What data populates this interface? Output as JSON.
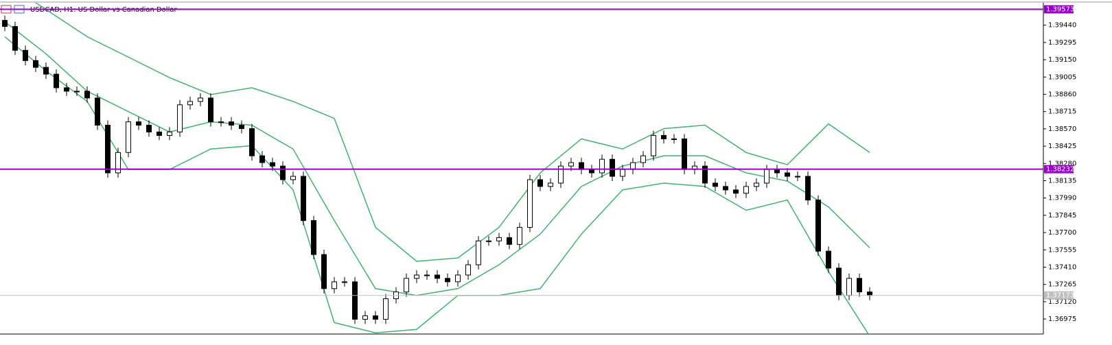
{
  "chart_data": {
    "type": "candlestick",
    "title": "USDCAD, H1:  US Dollar vs Canadian Dollar",
    "open": [
      1.3948,
      1.39429,
      1.39229,
      1.39143,
      1.39086,
      1.39029,
      1.38915,
      1.38886,
      1.38886,
      1.38829,
      1.38601,
      1.38201,
      1.38372,
      1.38629,
      1.38601,
      1.38544,
      1.38515,
      1.38544,
      1.38772,
      1.388,
      1.38829,
      1.38629,
      1.38629,
      1.38601,
      1.38572,
      1.38344,
      1.38287,
      1.38258,
      1.38144,
      1.38172,
      1.37801,
      1.37516,
      1.3723,
      1.37287,
      1.37287,
      1.36973,
      1.37002,
      1.36973,
      1.37145,
      1.37202,
      1.37316,
      1.37344,
      1.37344,
      1.37316,
      1.37287,
      1.37344,
      1.3743,
      1.3763,
      1.3763,
      1.37658,
      1.37601,
      1.37744,
      1.38144,
      1.38087,
      1.38115,
      1.38258,
      1.38287,
      1.38229,
      1.38201,
      1.38315,
      1.38172,
      1.38229,
      1.38287,
      1.38344,
      1.38515,
      1.38486,
      1.38486,
      1.38229,
      1.38258,
      1.38115,
      1.38087,
      1.38058,
      1.3803,
      1.38087,
      1.38115,
      1.38229,
      1.38201,
      1.38172,
      1.38172,
      1.37973,
      1.37544,
      1.37402,
      1.37173,
      1.37316,
      1.37202
    ],
    "high": [
      1.3952,
      1.39469,
      1.39269,
      1.39183,
      1.39126,
      1.39069,
      1.38955,
      1.38926,
      1.38926,
      1.38869,
      1.38641,
      1.38412,
      1.38669,
      1.38669,
      1.38641,
      1.38584,
      1.38584,
      1.38812,
      1.3884,
      1.38869,
      1.38869,
      1.38669,
      1.38669,
      1.38641,
      1.38612,
      1.38384,
      1.38327,
      1.38298,
      1.38212,
      1.38212,
      1.37841,
      1.37556,
      1.37327,
      1.37327,
      1.37327,
      1.37042,
      1.37042,
      1.37185,
      1.37242,
      1.37356,
      1.37384,
      1.37384,
      1.37384,
      1.37356,
      1.37384,
      1.3747,
      1.3767,
      1.3767,
      1.37698,
      1.37698,
      1.37784,
      1.38184,
      1.38184,
      1.38155,
      1.38298,
      1.38327,
      1.38327,
      1.38269,
      1.38355,
      1.38355,
      1.38269,
      1.38327,
      1.38384,
      1.38555,
      1.38555,
      1.38526,
      1.38526,
      1.38298,
      1.38298,
      1.38155,
      1.38127,
      1.38098,
      1.38127,
      1.38155,
      1.38269,
      1.38269,
      1.38241,
      1.38212,
      1.38212,
      1.38013,
      1.37584,
      1.37442,
      1.37356,
      1.37356,
      1.37242
    ],
    "low": [
      1.39389,
      1.39189,
      1.39103,
      1.39046,
      1.38989,
      1.38875,
      1.38846,
      1.38846,
      1.38789,
      1.38561,
      1.38161,
      1.38161,
      1.38332,
      1.38561,
      1.38504,
      1.38475,
      1.38475,
      1.38504,
      1.38732,
      1.3876,
      1.38589,
      1.38589,
      1.38561,
      1.38532,
      1.38304,
      1.38247,
      1.38218,
      1.38104,
      1.38104,
      1.37761,
      1.37476,
      1.3719,
      1.3719,
      1.37247,
      1.36933,
      1.36933,
      1.36933,
      1.36933,
      1.37105,
      1.37162,
      1.37276,
      1.37304,
      1.37276,
      1.37247,
      1.37247,
      1.37304,
      1.3739,
      1.3759,
      1.3759,
      1.37561,
      1.37561,
      1.37704,
      1.38047,
      1.38047,
      1.38075,
      1.38218,
      1.38189,
      1.38161,
      1.38161,
      1.38132,
      1.38132,
      1.38189,
      1.38247,
      1.38304,
      1.38446,
      1.38446,
      1.38189,
      1.38189,
      1.38075,
      1.38047,
      1.38018,
      1.3799,
      1.3799,
      1.38047,
      1.38075,
      1.38161,
      1.38132,
      1.38132,
      1.37933,
      1.37504,
      1.37362,
      1.37133,
      1.37133,
      1.37162,
      1.37133
    ],
    "close": [
      1.39429,
      1.39229,
      1.39143,
      1.39086,
      1.39029,
      1.38915,
      1.38886,
      1.38886,
      1.38829,
      1.38601,
      1.38201,
      1.38372,
      1.38629,
      1.38601,
      1.38544,
      1.38515,
      1.38544,
      1.38772,
      1.388,
      1.38829,
      1.38629,
      1.38629,
      1.38601,
      1.38572,
      1.38344,
      1.38287,
      1.38258,
      1.38144,
      1.38172,
      1.37801,
      1.37516,
      1.3723,
      1.37287,
      1.37287,
      1.36973,
      1.37002,
      1.36973,
      1.37145,
      1.37202,
      1.37316,
      1.37344,
      1.37344,
      1.37316,
      1.37287,
      1.37344,
      1.3743,
      1.3763,
      1.3763,
      1.37658,
      1.37601,
      1.37744,
      1.38144,
      1.38087,
      1.38115,
      1.38258,
      1.38287,
      1.38229,
      1.38201,
      1.38315,
      1.38172,
      1.38229,
      1.38287,
      1.38344,
      1.38515,
      1.38486,
      1.38486,
      1.38229,
      1.38258,
      1.38115,
      1.38087,
      1.38058,
      1.3803,
      1.38087,
      1.38115,
      1.38229,
      1.38201,
      1.38172,
      1.38172,
      1.37973,
      1.37544,
      1.37402,
      1.37173,
      1.37316,
      1.37202,
      1.37173
    ],
    "bands": {
      "color": "#3cb371",
      "x": [
        0,
        4,
        8,
        12,
        16,
        20,
        24,
        28,
        32,
        36,
        40,
        44,
        48,
        52,
        56,
        60,
        64,
        68,
        72,
        76,
        80,
        84
      ],
      "upper": [
        1.398,
        1.39571,
        1.39343,
        1.39172,
        1.39,
        1.38858,
        1.38915,
        1.388,
        1.38658,
        1.37744,
        1.37459,
        1.37487,
        1.37744,
        1.38201,
        1.38486,
        1.38401,
        1.38572,
        1.38601,
        1.38372,
        1.38269,
        1.38612,
        1.38372
      ],
      "middle": [
        1.39469,
        1.392,
        1.38886,
        1.38715,
        1.38544,
        1.38629,
        1.38601,
        1.38401,
        1.37801,
        1.3723,
        1.37173,
        1.3723,
        1.3743,
        1.37687,
        1.38087,
        1.38258,
        1.38344,
        1.38344,
        1.38201,
        1.38132,
        1.37915,
        1.37573
      ],
      "lower": [
        1.39343,
        1.39057,
        1.388,
        1.38229,
        1.38229,
        1.38401,
        1.38429,
        1.38058,
        1.36945,
        1.36859,
        1.36888,
        1.37173,
        1.37173,
        1.3723,
        1.37687,
        1.38058,
        1.38115,
        1.38087,
        1.37887,
        1.37973,
        1.37373,
        1.36831
      ]
    },
    "hlines": [
      {
        "value": 1.39573,
        "color": "#9900cc"
      },
      {
        "value": 1.38232,
        "color": "#9900cc"
      }
    ],
    "current_price": {
      "value": 1.37173,
      "color": "#c0c0c0"
    },
    "ylim": [
      1.36849,
      1.39628
    ],
    "yticks": [
      {
        "value": 1.3944,
        "label": "1.39440"
      },
      1.39295,
      {
        "value": 1.3915,
        "label": "1.39150"
      },
      1.39005,
      {
        "value": 1.3886,
        "label": "1.38860"
      },
      1.38715,
      {
        "value": 1.3857,
        "label": "1.38570"
      },
      1.38425,
      {
        "value": 1.3828,
        "label": "1.38280"
      },
      1.38135,
      {
        "value": 1.3799,
        "label": "1.37990"
      },
      1.37845,
      {
        "value": 1.377,
        "label": "1.37700"
      },
      1.37555,
      {
        "value": 1.3741,
        "label": "1.37410"
      },
      1.37265,
      {
        "value": 1.3712,
        "label": "1.37120"
      },
      1.36975
    ]
  }
}
